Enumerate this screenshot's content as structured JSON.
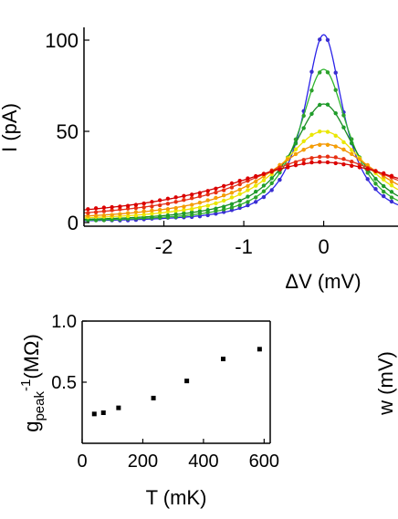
{
  "chart_data": [
    {
      "type": "line",
      "xlabel": "ΔV (mV)",
      "ylabel": "I (pA)",
      "xlim": [
        -3,
        0.93
      ],
      "ylim": [
        -2,
        107
      ],
      "x_ticks": [
        "-2",
        "-1",
        "0"
      ],
      "x_tick_values": [
        -2,
        -1,
        0
      ],
      "y_ticks": [
        "0",
        "50",
        "100"
      ],
      "y_tick_values": [
        0,
        50,
        100
      ],
      "grid": false,
      "curve_shape": "lorentzian",
      "series": [
        {
          "color": "#3a2fd0",
          "fit_color": "#2a22e8",
          "peak": 103,
          "hwhm": 0.3,
          "offset": 0
        },
        {
          "color": "#2ca02c",
          "fit_color": "#2fb52f",
          "peak": 84,
          "hwhm": 0.38,
          "offset": 0
        },
        {
          "color": "#1f9e2a",
          "fit_color": "#178a22",
          "peak": 65,
          "hwhm": 0.5,
          "offset": 0
        },
        {
          "color": "#e8e800",
          "fit_color": "#f0e000",
          "peak": 50,
          "hwhm": 0.7,
          "offset": 0
        },
        {
          "color": "#f5a000",
          "fit_color": "#f08a00",
          "peak": 43,
          "hwhm": 0.9,
          "offset": 0
        },
        {
          "color": "#e83010",
          "fit_color": "#e03020",
          "peak": 36,
          "hwhm": 1.25,
          "offset": 0
        },
        {
          "color": "#dd0000",
          "fit_color": "#cc0000",
          "peak": 33,
          "hwhm": 1.55,
          "offset": 0
        }
      ]
    },
    {
      "type": "scatter",
      "xlabel": "T (mK)",
      "ylabel_main": "g",
      "ylabel_sub": "peak",
      "ylabel_sup": "-1",
      "ylabel_unit": "(MΩ)",
      "xlim": [
        0,
        620
      ],
      "ylim": [
        0.0,
        1.0
      ],
      "x_ticks": [
        "0",
        "200",
        "400",
        "600"
      ],
      "x_tick_values": [
        0,
        200,
        400,
        600
      ],
      "y_ticks": [
        "0.5",
        "1.0"
      ],
      "y_tick_values": [
        0.5,
        1.0
      ],
      "grid": false,
      "points": [
        {
          "x": 40,
          "y": 0.24
        },
        {
          "x": 70,
          "y": 0.25
        },
        {
          "x": 120,
          "y": 0.29
        },
        {
          "x": 235,
          "y": 0.37
        },
        {
          "x": 345,
          "y": 0.51
        },
        {
          "x": 465,
          "y": 0.69
        },
        {
          "x": 585,
          "y": 0.77
        }
      ]
    },
    {
      "type": "scatter",
      "ylabel": "w (mV)"
    }
  ]
}
